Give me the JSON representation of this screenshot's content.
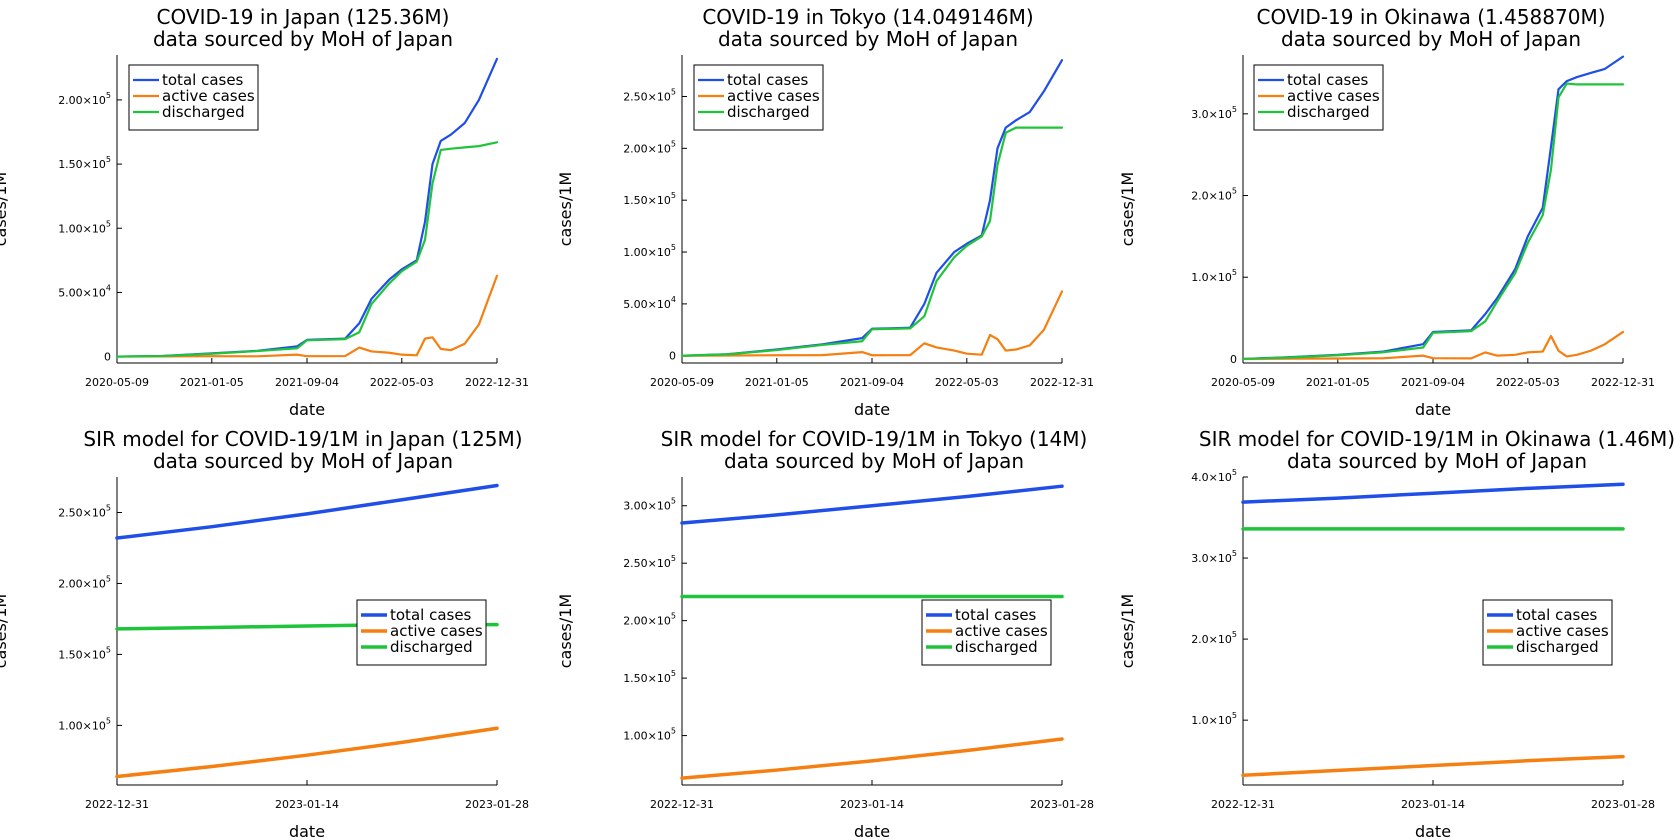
{
  "colors": {
    "total": "#1f4ee8",
    "active": "#f57f10",
    "discharged": "#1fc43a"
  },
  "charts": [
    {
      "title": [
        "COVID-19 in Japan (125.36M)",
        "data sourced by MoH of Japan"
      ],
      "xlabel": "date",
      "ylabel": "cases/1M",
      "xticks": [
        "2020-05-09",
        "2021-01-05",
        "2021-09-04",
        "2022-05-03",
        "2022-12-31"
      ],
      "yticks": [
        {
          "v": 0,
          "t": "0"
        },
        {
          "v": 50000,
          "t": "5.00×10^4"
        },
        {
          "v": 100000,
          "t": "1.00×10^5"
        },
        {
          "v": 150000,
          "t": "1.50×10^5"
        },
        {
          "v": 200000,
          "t": "2.00×10^5"
        }
      ],
      "legend": [
        "total cases",
        "active cases",
        "discharged"
      ]
    },
    {
      "title": [
        "COVID-19 in Tokyo (14.049146M)",
        "data sourced by MoH of Japan"
      ],
      "xlabel": "date",
      "ylabel": "cases/1M",
      "xticks": [
        "2020-05-09",
        "2021-01-05",
        "2021-09-04",
        "2022-05-03",
        "2022-12-31"
      ],
      "yticks": [
        {
          "v": 0,
          "t": "0"
        },
        {
          "v": 50000,
          "t": "5.00×10^4"
        },
        {
          "v": 100000,
          "t": "1.00×10^5"
        },
        {
          "v": 150000,
          "t": "1.50×10^5"
        },
        {
          "v": 200000,
          "t": "2.00×10^5"
        },
        {
          "v": 250000,
          "t": "2.50×10^5"
        }
      ],
      "legend": [
        "total cases",
        "active cases",
        "discharged"
      ]
    },
    {
      "title": [
        "COVID-19 in Okinawa (1.458870M)",
        "data sourced by MoH of Japan"
      ],
      "xlabel": "date",
      "ylabel": "cases/1M",
      "xticks": [
        "2020-05-09",
        "2021-01-05",
        "2021-09-04",
        "2022-05-03",
        "2022-12-31"
      ],
      "yticks": [
        {
          "v": 0,
          "t": "0"
        },
        {
          "v": 100000,
          "t": "1.0×10^5"
        },
        {
          "v": 200000,
          "t": "2.0×10^5"
        },
        {
          "v": 300000,
          "t": "3.0×10^5"
        }
      ],
      "legend": [
        "total cases",
        "active cases",
        "discharged"
      ]
    },
    {
      "title": [
        "SIR model for COVID-19/1M in Japan (125M)",
        "data sourced by MoH of Japan"
      ],
      "xlabel": "date",
      "ylabel": "cases/1M",
      "xticks": [
        "2022-12-31",
        "2023-01-14",
        "2023-01-28"
      ],
      "yticks": [
        {
          "v": 100000,
          "t": "1.00×10^5"
        },
        {
          "v": 150000,
          "t": "1.50×10^5"
        },
        {
          "v": 200000,
          "t": "2.00×10^5"
        },
        {
          "v": 250000,
          "t": "2.50×10^5"
        }
      ],
      "legend": [
        "total cases",
        "active cases",
        "discharged"
      ]
    },
    {
      "title": [
        "SIR model for COVID-19/1M in Tokyo (14M)",
        "data sourced by MoH of Japan"
      ],
      "xlabel": "date",
      "ylabel": "cases/1M",
      "xticks": [
        "2022-12-31",
        "2023-01-14",
        "2023-01-28"
      ],
      "yticks": [
        {
          "v": 100000,
          "t": "1.00×10^5"
        },
        {
          "v": 150000,
          "t": "1.50×10^5"
        },
        {
          "v": 200000,
          "t": "2.00×10^5"
        },
        {
          "v": 250000,
          "t": "2.50×10^5"
        },
        {
          "v": 300000,
          "t": "3.00×10^5"
        }
      ],
      "legend": [
        "total cases",
        "active cases",
        "discharged"
      ]
    },
    {
      "title": [
        "SIR model for COVID-19/1M in Okinawa (1.46M)",
        "data sourced by MoH of Japan"
      ],
      "xlabel": "date",
      "ylabel": "cases/1M",
      "xticks": [
        "2022-12-31",
        "2023-01-14",
        "2023-01-28"
      ],
      "yticks": [
        {
          "v": 100000,
          "t": "1.0×10^5"
        },
        {
          "v": 200000,
          "t": "2.0×10^5"
        },
        {
          "v": 300000,
          "t": "3.0×10^5"
        },
        {
          "v": 400000,
          "t": "4.0×10^5"
        }
      ],
      "legend": [
        "total cases",
        "active cases",
        "discharged"
      ]
    }
  ],
  "chart_data": [
    {
      "type": "line",
      "title": "COVID-19 in Japan (125.36M) data sourced by MoH of Japan",
      "xlabel": "date",
      "ylabel": "cases/1M",
      "xlim": [
        "2020-05-09",
        "2022-12-31"
      ],
      "ylim": [
        -5000,
        235000
      ],
      "legend": "top-left",
      "x": [
        "2020-05-09",
        "2020-09-01",
        "2021-01-05",
        "2021-05-01",
        "2021-08-10",
        "2021-09-04",
        "2021-12-10",
        "2022-01-15",
        "2022-02-15",
        "2022-04-01",
        "2022-05-03",
        "2022-06-10",
        "2022-07-01",
        "2022-07-20",
        "2022-08-10",
        "2022-09-05",
        "2022-10-10",
        "2022-11-15",
        "2022-12-31"
      ],
      "series": [
        {
          "name": "total cases",
          "values": [
            0,
            500,
            2500,
            4500,
            8000,
            13000,
            14000,
            26000,
            45000,
            60000,
            68000,
            75000,
            105000,
            150000,
            168000,
            173000,
            182000,
            200000,
            232000
          ]
        },
        {
          "name": "active cases",
          "values": [
            0,
            100,
            300,
            200,
            1500,
            300,
            400,
            7000,
            4000,
            3000,
            1500,
            1000,
            14000,
            15000,
            6000,
            5000,
            10000,
            25000,
            63000
          ]
        },
        {
          "name": "discharged",
          "values": [
            0,
            400,
            2200,
            4300,
            6500,
            12700,
            13600,
            19000,
            41000,
            57000,
            66500,
            74000,
            91000,
            135000,
            161000,
            162000,
            163000,
            164000,
            167000
          ]
        }
      ]
    },
    {
      "type": "line",
      "title": "COVID-19 in Tokyo (14.049146M) data sourced by MoH of Japan",
      "xlabel": "date",
      "ylabel": "cases/1M",
      "xlim": [
        "2020-05-09",
        "2022-12-31"
      ],
      "ylim": [
        -7000,
        290000
      ],
      "legend": "top-left",
      "x": [
        "2020-05-09",
        "2020-09-01",
        "2021-01-05",
        "2021-05-01",
        "2021-08-10",
        "2021-09-04",
        "2021-12-10",
        "2022-01-15",
        "2022-02-15",
        "2022-04-01",
        "2022-05-03",
        "2022-06-10",
        "2022-07-01",
        "2022-07-20",
        "2022-08-10",
        "2022-09-05",
        "2022-10-10",
        "2022-11-15",
        "2022-12-31"
      ],
      "series": [
        {
          "name": "total cases",
          "values": [
            0,
            1500,
            6000,
            11000,
            17000,
            26000,
            27000,
            50000,
            80000,
            100000,
            108000,
            116000,
            150000,
            200000,
            220000,
            227000,
            235000,
            255000,
            285000
          ]
        },
        {
          "name": "active cases",
          "values": [
            0,
            200,
            500,
            600,
            3500,
            500,
            600,
            12000,
            8000,
            5000,
            2000,
            1000,
            20000,
            16000,
            5000,
            6000,
            10000,
            25000,
            62000
          ]
        },
        {
          "name": "discharged",
          "values": [
            0,
            1300,
            5500,
            10400,
            14000,
            25500,
            26400,
            38000,
            72000,
            95000,
            106000,
            115000,
            130000,
            184000,
            215000,
            220000,
            220000,
            220000,
            220000
          ]
        }
      ]
    },
    {
      "type": "line",
      "title": "COVID-19 in Okinawa (1.458870M) data sourced by MoH of Japan",
      "xlabel": "date",
      "ylabel": "cases/1M",
      "xlim": [
        "2020-05-09",
        "2022-12-31"
      ],
      "ylim": [
        -5000,
        372000
      ],
      "legend": "top-left",
      "x": [
        "2020-05-09",
        "2020-09-01",
        "2021-01-05",
        "2021-05-01",
        "2021-08-10",
        "2021-09-04",
        "2021-12-10",
        "2022-01-15",
        "2022-02-15",
        "2022-04-01",
        "2022-05-03",
        "2022-06-10",
        "2022-07-01",
        "2022-07-20",
        "2022-08-10",
        "2022-09-05",
        "2022-10-10",
        "2022-11-15",
        "2022-12-31"
      ],
      "series": [
        {
          "name": "total cases",
          "values": [
            0,
            2000,
            5000,
            9000,
            18000,
            33000,
            35000,
            55000,
            75000,
            110000,
            150000,
            185000,
            260000,
            330000,
            340000,
            345000,
            350000,
            355000,
            370000
          ]
        },
        {
          "name": "active cases",
          "values": [
            0,
            300,
            500,
            800,
            4000,
            900,
            700,
            8000,
            4000,
            5000,
            8000,
            9000,
            28000,
            10000,
            3000,
            5000,
            10000,
            18000,
            33000
          ]
        },
        {
          "name": "discharged",
          "values": [
            0,
            1700,
            4500,
            8200,
            14000,
            32000,
            34000,
            46000,
            71000,
            105000,
            142000,
            176000,
            232000,
            320000,
            337000,
            336000,
            336000,
            336000,
            336000
          ]
        }
      ]
    },
    {
      "type": "line",
      "title": "SIR model for COVID-19/1M in Japan (125M) data sourced by MoH of Japan",
      "xlabel": "date",
      "ylabel": "cases/1M",
      "xlim": [
        "2022-12-31",
        "2023-01-28"
      ],
      "ylim": [
        58000,
        275000
      ],
      "legend": "right",
      "x": [
        "2022-12-31",
        "2023-01-07",
        "2023-01-14",
        "2023-01-21",
        "2023-01-28"
      ],
      "series": [
        {
          "name": "total cases",
          "values": [
            232000,
            240000,
            249000,
            259000,
            269000
          ]
        },
        {
          "name": "active cases",
          "values": [
            64000,
            71000,
            79000,
            88000,
            98000
          ]
        },
        {
          "name": "discharged",
          "values": [
            168000,
            169000,
            170000,
            171000,
            171000
          ]
        }
      ]
    },
    {
      "type": "line",
      "title": "SIR model for COVID-19/1M in Tokyo (14M) data sourced by MoH of Japan",
      "xlabel": "date",
      "ylabel": "cases/1M",
      "xlim": [
        "2022-12-31",
        "2023-01-28"
      ],
      "ylim": [
        57000,
        325000
      ],
      "legend": "right",
      "x": [
        "2022-12-31",
        "2023-01-07",
        "2023-01-14",
        "2023-01-21",
        "2023-01-28"
      ],
      "series": [
        {
          "name": "total cases",
          "values": [
            285000,
            292000,
            300000,
            308000,
            317000
          ]
        },
        {
          "name": "active cases",
          "values": [
            63000,
            70000,
            78000,
            87000,
            97000
          ]
        },
        {
          "name": "discharged",
          "values": [
            221000,
            221000,
            221000,
            221000,
            221000
          ]
        }
      ]
    },
    {
      "type": "line",
      "title": "SIR model for COVID-19/1M in Okinawa (1.46M) data sourced by MoH of Japan",
      "xlabel": "date",
      "ylabel": "cases/1M",
      "xlim": [
        "2022-12-31",
        "2023-01-28"
      ],
      "ylim": [
        20000,
        400000
      ],
      "legend": "right",
      "x": [
        "2022-12-31",
        "2023-01-07",
        "2023-01-14",
        "2023-01-21",
        "2023-01-28"
      ],
      "series": [
        {
          "name": "total cases",
          "values": [
            369000,
            374000,
            380000,
            386000,
            391000
          ]
        },
        {
          "name": "active cases",
          "values": [
            32000,
            38000,
            44000,
            50000,
            55000
          ]
        },
        {
          "name": "discharged",
          "values": [
            336000,
            336000,
            336000,
            336000,
            336000
          ]
        }
      ]
    }
  ]
}
